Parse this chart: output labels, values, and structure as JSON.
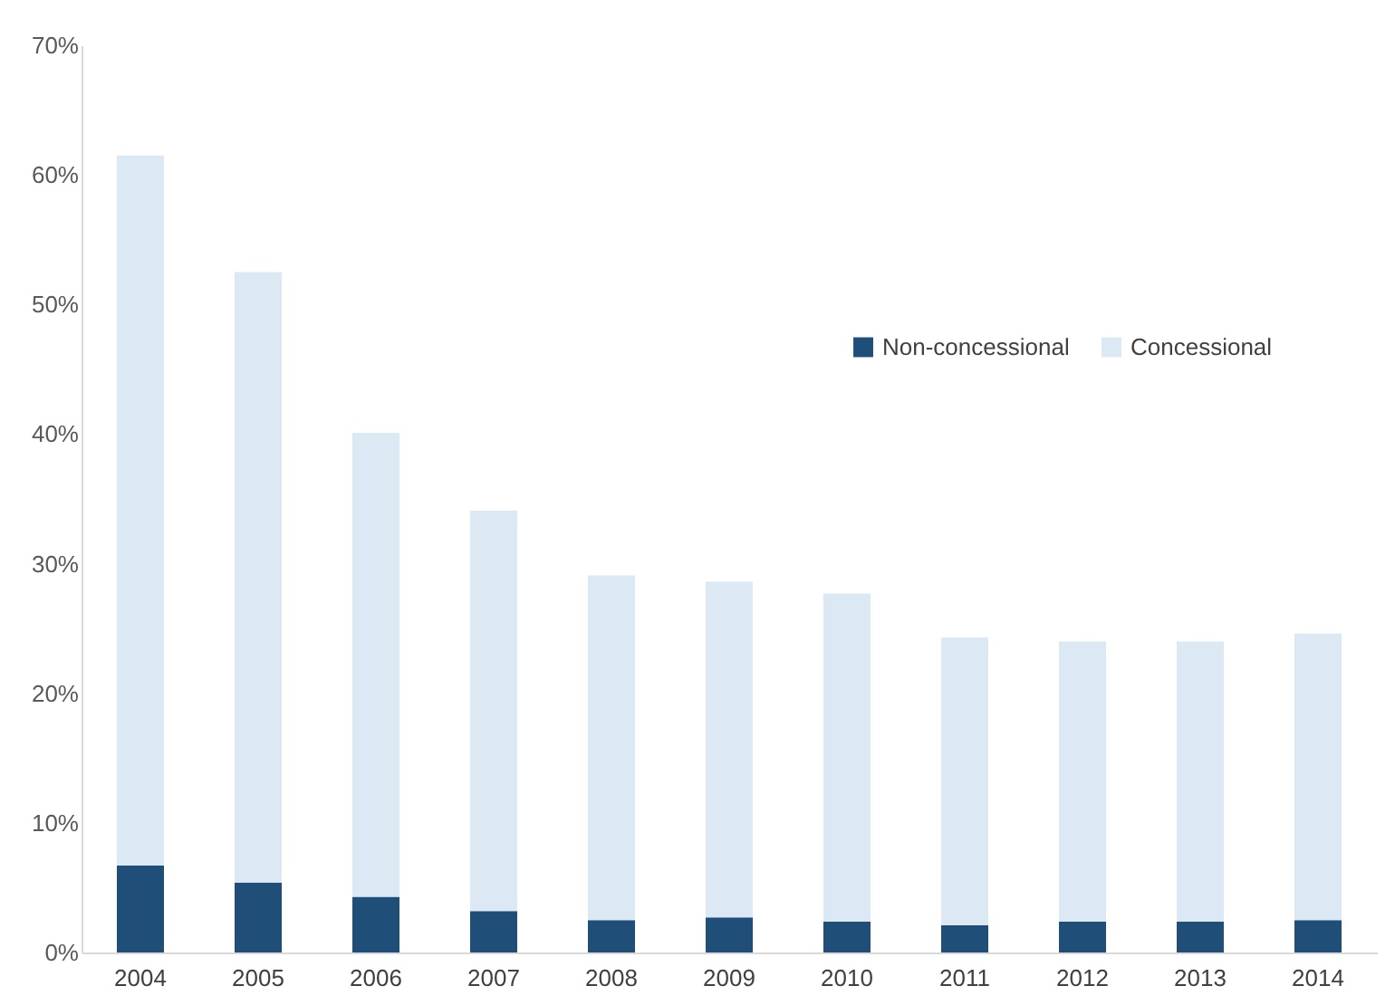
{
  "chart_data": {
    "type": "bar",
    "stacked": true,
    "categories": [
      "2004",
      "2005",
      "2006",
      "2007",
      "2008",
      "2009",
      "2010",
      "2011",
      "2012",
      "2013",
      "2014"
    ],
    "series": [
      {
        "name": "Non-concessional",
        "color": "#1f4e79",
        "values": [
          6.7,
          5.4,
          4.3,
          3.2,
          2.5,
          2.7,
          2.4,
          2.1,
          2.4,
          2.4,
          2.5
        ]
      },
      {
        "name": "Concessional",
        "color": "#dde8f5",
        "values": [
          54.8,
          47.1,
          35.8,
          30.9,
          26.6,
          25.9,
          25.3,
          22.2,
          21.6,
          21.6,
          22.1
        ]
      }
    ],
    "ylim": [
      0,
      70
    ],
    "yticks": [
      {
        "value": 0,
        "label": "0%"
      },
      {
        "value": 10,
        "label": "10%"
      },
      {
        "value": 20,
        "label": "20%"
      },
      {
        "value": 30,
        "label": "30%"
      },
      {
        "value": 40,
        "label": "40%"
      },
      {
        "value": 50,
        "label": "50%"
      },
      {
        "value": 60,
        "label": "60%"
      },
      {
        "value": 70,
        "label": "70%"
      }
    ],
    "grid": false,
    "legend": "top right"
  }
}
